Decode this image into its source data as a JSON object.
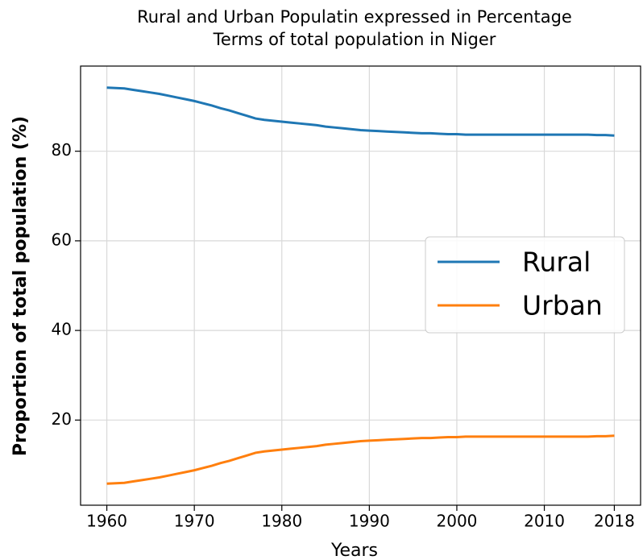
{
  "chart_data": {
    "type": "line",
    "title": [
      "Rural and Urban Populatin expressed in Percentage",
      "Terms of total population in Niger"
    ],
    "xlabel": "Years",
    "ylabel": "Proportion of total population (%)",
    "x": [
      1960,
      1961,
      1962,
      1963,
      1964,
      1965,
      1966,
      1967,
      1968,
      1969,
      1970,
      1971,
      1972,
      1973,
      1974,
      1975,
      1976,
      1977,
      1978,
      1979,
      1980,
      1981,
      1982,
      1983,
      1984,
      1985,
      1986,
      1987,
      1988,
      1989,
      1990,
      1991,
      1992,
      1993,
      1994,
      1995,
      1996,
      1997,
      1998,
      1999,
      2000,
      2001,
      2002,
      2003,
      2004,
      2005,
      2006,
      2007,
      2008,
      2009,
      2010,
      2011,
      2012,
      2013,
      2014,
      2015,
      2016,
      2017,
      2018
    ],
    "series": [
      {
        "name": "Rural",
        "color": "#1f77b4",
        "values": [
          94.2,
          94.1,
          94.0,
          93.7,
          93.4,
          93.1,
          92.8,
          92.4,
          92.0,
          91.6,
          91.2,
          90.7,
          90.2,
          89.6,
          89.1,
          88.5,
          87.9,
          87.3,
          87.0,
          86.8,
          86.6,
          86.4,
          86.2,
          86.0,
          85.8,
          85.5,
          85.3,
          85.1,
          84.9,
          84.7,
          84.6,
          84.5,
          84.4,
          84.3,
          84.2,
          84.1,
          84.0,
          84.0,
          83.9,
          83.8,
          83.8,
          83.7,
          83.7,
          83.7,
          83.7,
          83.7,
          83.7,
          83.7,
          83.7,
          83.7,
          83.7,
          83.7,
          83.7,
          83.7,
          83.7,
          83.7,
          83.6,
          83.6,
          83.5
        ]
      },
      {
        "name": "Urban",
        "color": "#ff7f0e",
        "values": [
          5.8,
          5.9,
          6.0,
          6.3,
          6.6,
          6.9,
          7.2,
          7.6,
          8.0,
          8.4,
          8.8,
          9.3,
          9.8,
          10.4,
          10.9,
          11.5,
          12.1,
          12.7,
          13.0,
          13.2,
          13.4,
          13.6,
          13.8,
          14.0,
          14.2,
          14.5,
          14.7,
          14.9,
          15.1,
          15.3,
          15.4,
          15.5,
          15.6,
          15.7,
          15.8,
          15.9,
          16.0,
          16.0,
          16.1,
          16.2,
          16.2,
          16.3,
          16.3,
          16.3,
          16.3,
          16.3,
          16.3,
          16.3,
          16.3,
          16.3,
          16.3,
          16.3,
          16.3,
          16.3,
          16.3,
          16.3,
          16.4,
          16.4,
          16.5
        ]
      }
    ],
    "xlim": [
      1957,
      2021
    ],
    "xticks": [
      1960,
      1970,
      1980,
      1990,
      2000,
      2010,
      2018
    ],
    "ylim": [
      1,
      99
    ],
    "yticks": [
      20,
      40,
      60,
      80
    ],
    "grid": true,
    "legend": "center right",
    "title_color": "#8b1a9b"
  }
}
